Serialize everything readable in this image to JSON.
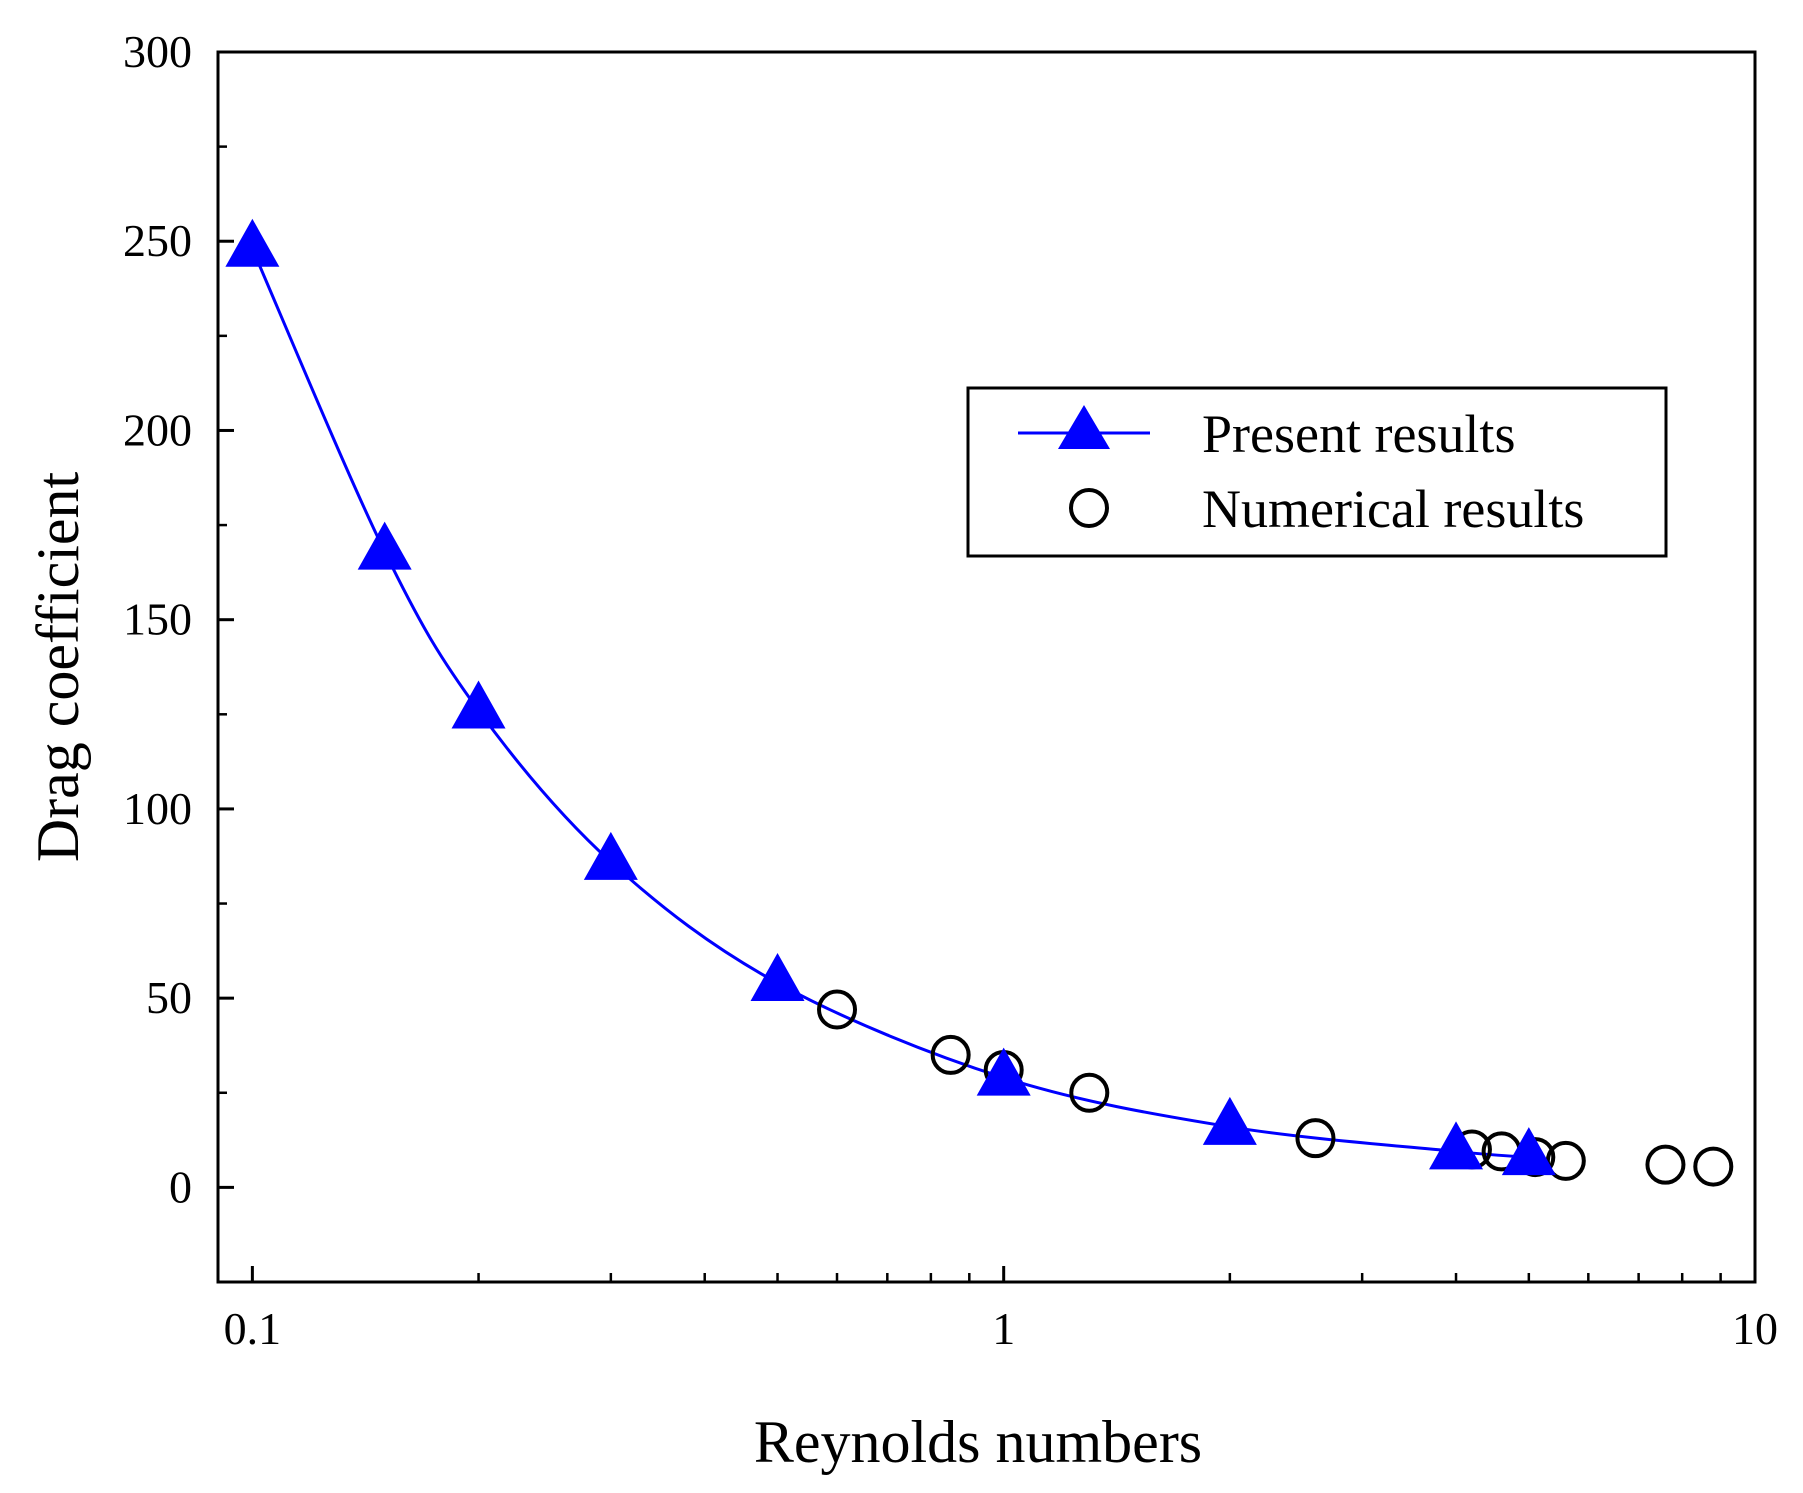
{
  "chart_data": {
    "type": "line",
    "xscale": "log",
    "xlim": [
      0.09,
      10
    ],
    "ylim": [
      -25,
      300
    ],
    "xlabel": "Reynolds numbers",
    "ylabel": "Drag coefficient",
    "x_ticks": [
      {
        "value": 0.1,
        "label": "0.1"
      },
      {
        "value": 1,
        "label": "1"
      },
      {
        "value": 10,
        "label": "10"
      }
    ],
    "y_ticks": [
      {
        "value": 0,
        "label": "0"
      },
      {
        "value": 50,
        "label": "50"
      },
      {
        "value": 100,
        "label": "100"
      },
      {
        "value": 150,
        "label": "150"
      },
      {
        "value": 200,
        "label": "200"
      },
      {
        "value": 250,
        "label": "250"
      },
      {
        "value": 300,
        "label": "300"
      }
    ],
    "legend_position": "upper-right",
    "series": [
      {
        "name": "Present results",
        "style": "line-triangle",
        "color": "#0000ff",
        "x": [
          0.1,
          0.15,
          0.2,
          0.3,
          0.5,
          1,
          2,
          4,
          5
        ],
        "y": [
          248,
          168,
          126,
          86,
          54,
          29,
          16,
          9.5,
          8
        ]
      },
      {
        "name": "Numerical results",
        "style": "open-circle",
        "color": "#000000",
        "x": [
          0.6,
          0.85,
          1,
          1.3,
          2.6,
          4.2,
          4.6,
          5.1,
          5.6,
          7.6,
          8.8
        ],
        "y": [
          47,
          35,
          31,
          25,
          13,
          10,
          9.5,
          8,
          7,
          6,
          5.5
        ]
      }
    ]
  }
}
